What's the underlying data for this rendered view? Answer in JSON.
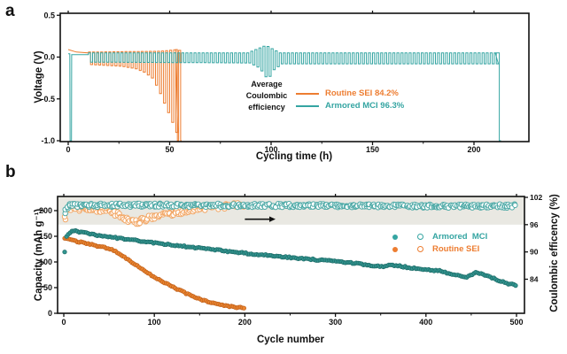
{
  "figure": {
    "panels": [
      {
        "label": "a"
      },
      {
        "label": "b"
      }
    ]
  },
  "colors": {
    "axis": "#111111",
    "armored": "#35A5A2",
    "routine": "#ED7D31",
    "band": "#E9E8E2"
  },
  "panel_a": {
    "annotation_lines": [
      "Average",
      "Coulombic",
      "efficiency"
    ],
    "legend": [
      {
        "label": "Routine SEI 84.2%",
        "color_key": "routine"
      },
      {
        "label": "Armored MCI 96.3%",
        "color_key": "armored"
      }
    ]
  },
  "panel_b": {
    "legend": [
      {
        "label": "Armored  MCI",
        "color_key": "armored"
      },
      {
        "label": "Routine SEI",
        "color_key": "routine"
      }
    ]
  },
  "chart_data": [
    {
      "id": "panel-a",
      "type": "line",
      "xlabel": "Cycling time (h)",
      "ylabel": "Voltage (V)",
      "xlim": [
        -4,
        231
      ],
      "ylim": [
        -1.0,
        0.53
      ],
      "xticks": [
        0,
        50,
        100,
        150,
        200
      ],
      "yticks": [
        0.5,
        0.0,
        -0.5,
        -1.0
      ],
      "grid": false,
      "series": [
        {
          "name": "Routine SEI",
          "color_key": "routine",
          "average_coulombic_efficiency": "84.2%",
          "segments": [
            {
              "type": "poly",
              "points": [
                [
                  0,
                  0.09
                ],
                [
                  4,
                  0.06
                ],
                [
                  10,
                  0.05
                ]
              ]
            },
            {
              "type": "squarewave",
              "t0": 10,
              "t1": 53,
              "period": 2,
              "hi": [
                [
                  10,
                  0.06
                ],
                [
                  45,
                  0.07
                ],
                [
                  53,
                  0.09
                ]
              ],
              "lo": [
                [
                  10,
                  -0.09
                ],
                [
                  25,
                  -0.11
                ],
                [
                  32,
                  -0.14
                ],
                [
                  36,
                  -0.18
                ],
                [
                  40,
                  -0.25
                ],
                [
                  43,
                  -0.38
                ],
                [
                  46,
                  -0.55
                ],
                [
                  49,
                  -0.72
                ],
                [
                  52,
                  -0.9
                ],
                [
                  53,
                  -0.95
                ]
              ]
            },
            {
              "type": "poly",
              "points": [
                [
                  53,
                  0.09
                ],
                [
                  53.8,
                  0.09
                ],
                [
                  53.8,
                  -1.0
                ],
                [
                  54.4,
                  -1.0
                ],
                [
                  54.4,
                  0.08
                ],
                [
                  55.4,
                  0.08
                ],
                [
                  55.4,
                  -1.0
                ],
                [
                  55.9,
                  -1.0
                ]
              ]
            }
          ]
        },
        {
          "name": "Armored MCI",
          "color_key": "armored",
          "average_coulombic_efficiency": "96.3%",
          "segments": [
            {
              "type": "poly",
              "points": [
                [
                  0,
                  0.04
                ],
                [
                  0.8,
                  0.04
                ],
                [
                  0.9,
                  -1.0
                ],
                [
                  1.6,
                  -1.0
                ],
                [
                  1.7,
                  0.03
                ],
                [
                  10,
                  0.03
                ]
              ]
            },
            {
              "type": "squarewave",
              "t0": 10,
              "t1": 210.5,
              "period": 2,
              "hi": [
                [
                  10,
                  0.05
                ],
                [
                  88,
                  0.05
                ],
                [
                  93,
                  0.1
                ],
                [
                  97,
                  0.14
                ],
                [
                  100,
                  0.1
                ],
                [
                  104,
                  0.05
                ],
                [
                  210.5,
                  0.05
                ]
              ],
              "lo": [
                [
                  10,
                  -0.06
                ],
                [
                  88,
                  -0.07
                ],
                [
                  93,
                  -0.13
                ],
                [
                  97,
                  -0.27
                ],
                [
                  100,
                  -0.15
                ],
                [
                  104,
                  -0.08
                ],
                [
                  210.5,
                  -0.08
                ]
              ]
            },
            {
              "type": "poly",
              "points": [
                [
                  210.5,
                  0.05
                ],
                [
                  212.5,
                  0.05
                ],
                [
                  212.5,
                  -1.0
                ],
                [
                  213.3,
                  -1.0
                ]
              ]
            }
          ]
        }
      ]
    },
    {
      "id": "panel-b",
      "type": "scatter",
      "xlabel": "Cycle number",
      "ylabel_left": "Capacity (mAh g⁻¹)",
      "ylabel_right": "Coulombic efficency (%)",
      "xlim": [
        -7,
        509
      ],
      "ylim_left": [
        0,
        228
      ],
      "ylim_right": [
        76.5,
        102.3
      ],
      "xticks": [
        0,
        100,
        200,
        300,
        400,
        500
      ],
      "yticks_left": [
        0,
        50,
        100,
        150,
        200
      ],
      "yticks_right": [
        102,
        96,
        90,
        84
      ],
      "band": {
        "axis": "right",
        "from": 96,
        "to": 102.3,
        "color_key": "band"
      },
      "arrow": {
        "x1": 200,
        "x2": 227,
        "y_right_axis": 97.2
      },
      "series": [
        {
          "name": "Routine SEI efficiency",
          "axis": "right",
          "marker": "open",
          "r": 2.7,
          "edge": "#F2A766",
          "fill": "#FFFFFF",
          "step": 1.2,
          "jitter": 0.55,
          "xjitter": 1.4,
          "breakpoints": [
            [
              1,
              97.3
            ],
            [
              5,
              99.6
            ],
            [
              30,
              99.4
            ],
            [
              50,
              99.0
            ],
            [
              60,
              98.2
            ],
            [
              70,
              96.9
            ],
            [
              80,
              96.6
            ],
            [
              90,
              97.1
            ],
            [
              100,
              97.8
            ],
            [
              120,
              98.5
            ],
            [
              140,
              99.2
            ],
            [
              160,
              99.7
            ],
            [
              180,
              100.1
            ],
            [
              200,
              100.4
            ]
          ]
        },
        {
          "name": "Armored MCI efficiency",
          "axis": "right",
          "marker": "open",
          "r": 2.7,
          "edge": "#4FAAA7",
          "fill": "#FFFFFF",
          "step": 1.2,
          "jitter": 0.4,
          "xjitter": 1.4,
          "breakpoints": [
            [
              1,
              98.8
            ],
            [
              4,
              100.2
            ],
            [
              100,
              100.3
            ],
            [
              250,
              100.2
            ],
            [
              400,
              100.1
            ],
            [
              500,
              100.1
            ]
          ]
        },
        {
          "name": "Routine SEI capacity",
          "axis": "left",
          "marker": "filled",
          "r": 2.2,
          "edge": "#C2621C",
          "fill": "#EC8630",
          "step": 2,
          "jitter": 1.2,
          "xjitter": 0,
          "breakpoints": [
            [
              1,
              146
            ],
            [
              10,
              142
            ],
            [
              20,
              138
            ],
            [
              30,
              134
            ],
            [
              40,
              130
            ],
            [
              50,
              126
            ],
            [
              55,
              123
            ],
            [
              60,
              117
            ],
            [
              70,
              106
            ],
            [
              80,
              94
            ],
            [
              90,
              82
            ],
            [
              100,
              71
            ],
            [
              110,
              61
            ],
            [
              120,
              52
            ],
            [
              130,
              43
            ],
            [
              140,
              35
            ],
            [
              150,
              28
            ],
            [
              160,
              22
            ],
            [
              170,
              18
            ],
            [
              180,
              14
            ],
            [
              190,
              12
            ],
            [
              200,
              10
            ]
          ]
        },
        {
          "name": "Armored MCI capacity",
          "axis": "left",
          "marker": "filled",
          "r": 2.2,
          "edge": "#1F6E6A",
          "fill": "#339792",
          "step": 2,
          "jitter": 1.4,
          "xjitter": 0,
          "breakpoints": [
            [
              1,
              120
            ],
            [
              2,
              147
            ],
            [
              5,
              155
            ],
            [
              10,
              161
            ],
            [
              20,
              158
            ],
            [
              30,
              154
            ],
            [
              50,
              149
            ],
            [
              75,
              143
            ],
            [
              100,
              137
            ],
            [
              125,
              132
            ],
            [
              150,
              127
            ],
            [
              175,
              122
            ],
            [
              200,
              117
            ],
            [
              225,
              113
            ],
            [
              250,
              109
            ],
            [
              275,
              105
            ],
            [
              300,
              101
            ],
            [
              320,
              98
            ],
            [
              340,
              93
            ],
            [
              350,
              91
            ],
            [
              360,
              94
            ],
            [
              375,
              91
            ],
            [
              400,
              85
            ],
            [
              415,
              83
            ],
            [
              430,
              76
            ],
            [
              445,
              70
            ],
            [
              455,
              79
            ],
            [
              465,
              75
            ],
            [
              480,
              64
            ],
            [
              490,
              58
            ],
            [
              500,
              55
            ]
          ]
        }
      ]
    }
  ]
}
